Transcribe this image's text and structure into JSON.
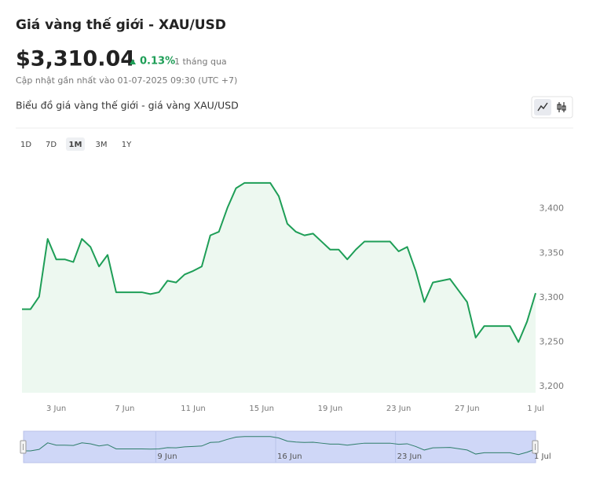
{
  "header": {
    "title": "Giá vàng thế giới - XAU/USD",
    "price": "$3,310.04",
    "change": "0.13%",
    "period": "1 tháng qua",
    "updated": "Cập nhật gần nhất vào 01-07-2025 09:30 (UTC +7)"
  },
  "chart_section_title": "Biểu đồ giá vàng thế giới - giá vàng XAU/USD",
  "ranges": [
    {
      "label": "1D"
    },
    {
      "label": "7D"
    },
    {
      "label": "1M",
      "active": true
    },
    {
      "label": "3M"
    },
    {
      "label": "1Y"
    }
  ],
  "chart_data": {
    "type": "line",
    "color": "#1e9e57",
    "fill_color": "#edf8f0",
    "categories": [
      null,
      null,
      null,
      null,
      "3 Jun",
      null,
      null,
      null,
      null,
      null,
      null,
      null,
      "7 Jun",
      null,
      null,
      null,
      null,
      null,
      null,
      null,
      "11 Jun",
      null,
      null,
      null,
      null,
      null,
      null,
      null,
      "15 Jun",
      null,
      null,
      null,
      null,
      null,
      null,
      null,
      "19 Jun",
      null,
      null,
      null,
      null,
      null,
      null,
      null,
      "23 Jun",
      null,
      null,
      null,
      null,
      null,
      null,
      null,
      "27 Jun",
      null,
      null,
      null,
      null,
      null,
      null,
      null,
      "1 Jul"
    ],
    "values": [
      3287,
      3287,
      3301,
      3366,
      3343,
      3343,
      3340,
      3366,
      3357,
      3335,
      3348,
      3306,
      3306,
      3306,
      3306,
      3304,
      3306,
      3319,
      3317,
      3326,
      3330,
      3335,
      3370,
      3374,
      3401,
      3423,
      3429,
      3429,
      3429,
      3429,
      3414,
      3383,
      3374,
      3370,
      3372,
      3363,
      3354,
      3354,
      3343,
      3354,
      3363,
      3363,
      3363,
      3363,
      3352,
      3357,
      3330,
      3295,
      3317,
      3319,
      3321,
      3308,
      3295,
      3255,
      3268,
      3268,
      3268,
      3268,
      3250,
      3273,
      3305
    ],
    "ylim": [
      3193,
      3458
    ],
    "yticks": [
      {
        "value": 3200,
        "label": "3,200"
      },
      {
        "value": 3250,
        "label": "3,250"
      },
      {
        "value": 3300,
        "label": "3,300"
      },
      {
        "value": 3350,
        "label": "3,350"
      },
      {
        "value": 3400,
        "label": "3,400"
      }
    ],
    "navigator_categories": [
      null,
      null,
      null,
      null,
      null,
      null,
      null,
      null,
      null,
      null,
      null,
      null,
      null,
      null,
      null,
      null,
      "9 Jun",
      null,
      null,
      null,
      null,
      null,
      null,
      null,
      null,
      null,
      null,
      null,
      null,
      null,
      "16 Jun",
      null,
      null,
      null,
      null,
      null,
      null,
      null,
      null,
      null,
      null,
      null,
      null,
      null,
      "23 Jun",
      null,
      null,
      null,
      null,
      null,
      null,
      null,
      null,
      null,
      null,
      null,
      null,
      null,
      null,
      null,
      "1 Jul"
    ]
  }
}
